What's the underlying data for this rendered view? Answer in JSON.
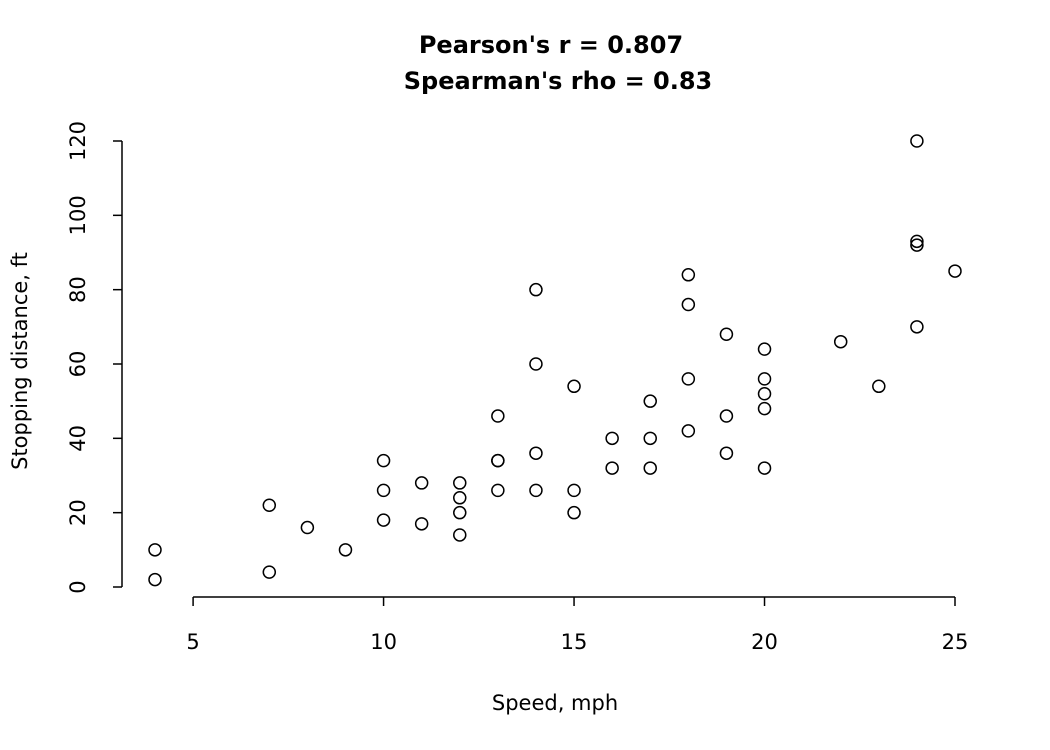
{
  "chart_data": {
    "type": "scatter",
    "title_lines": [
      "Pearson's r =  0.807",
      "Spearman's rho =  0.83"
    ],
    "xlabel": "Speed, mph",
    "ylabel": "Stopping distance, ft",
    "xlim": [
      4,
      25
    ],
    "ylim": [
      0,
      120
    ],
    "xticks": [
      5,
      10,
      15,
      20,
      25
    ],
    "yticks": [
      0,
      20,
      40,
      60,
      80,
      100,
      120
    ],
    "grid": false,
    "marker": "open-circle",
    "points": [
      {
        "x": 4,
        "y": 2
      },
      {
        "x": 4,
        "y": 10
      },
      {
        "x": 7,
        "y": 4
      },
      {
        "x": 7,
        "y": 22
      },
      {
        "x": 8,
        "y": 16
      },
      {
        "x": 9,
        "y": 10
      },
      {
        "x": 10,
        "y": 18
      },
      {
        "x": 10,
        "y": 26
      },
      {
        "x": 10,
        "y": 34
      },
      {
        "x": 11,
        "y": 17
      },
      {
        "x": 11,
        "y": 28
      },
      {
        "x": 12,
        "y": 14
      },
      {
        "x": 12,
        "y": 20
      },
      {
        "x": 12,
        "y": 24
      },
      {
        "x": 12,
        "y": 28
      },
      {
        "x": 13,
        "y": 26
      },
      {
        "x": 13,
        "y": 34
      },
      {
        "x": 13,
        "y": 34
      },
      {
        "x": 13,
        "y": 46
      },
      {
        "x": 14,
        "y": 26
      },
      {
        "x": 14,
        "y": 36
      },
      {
        "x": 14,
        "y": 60
      },
      {
        "x": 14,
        "y": 80
      },
      {
        "x": 15,
        "y": 20
      },
      {
        "x": 15,
        "y": 26
      },
      {
        "x": 15,
        "y": 54
      },
      {
        "x": 16,
        "y": 32
      },
      {
        "x": 16,
        "y": 40
      },
      {
        "x": 17,
        "y": 32
      },
      {
        "x": 17,
        "y": 40
      },
      {
        "x": 17,
        "y": 50
      },
      {
        "x": 18,
        "y": 42
      },
      {
        "x": 18,
        "y": 56
      },
      {
        "x": 18,
        "y": 76
      },
      {
        "x": 18,
        "y": 84
      },
      {
        "x": 19,
        "y": 36
      },
      {
        "x": 19,
        "y": 46
      },
      {
        "x": 19,
        "y": 68
      },
      {
        "x": 20,
        "y": 32
      },
      {
        "x": 20,
        "y": 48
      },
      {
        "x": 20,
        "y": 52
      },
      {
        "x": 20,
        "y": 56
      },
      {
        "x": 20,
        "y": 64
      },
      {
        "x": 22,
        "y": 66
      },
      {
        "x": 23,
        "y": 54
      },
      {
        "x": 24,
        "y": 70
      },
      {
        "x": 24,
        "y": 92
      },
      {
        "x": 24,
        "y": 93
      },
      {
        "x": 24,
        "y": 120
      },
      {
        "x": 25,
        "y": 85
      }
    ]
  }
}
